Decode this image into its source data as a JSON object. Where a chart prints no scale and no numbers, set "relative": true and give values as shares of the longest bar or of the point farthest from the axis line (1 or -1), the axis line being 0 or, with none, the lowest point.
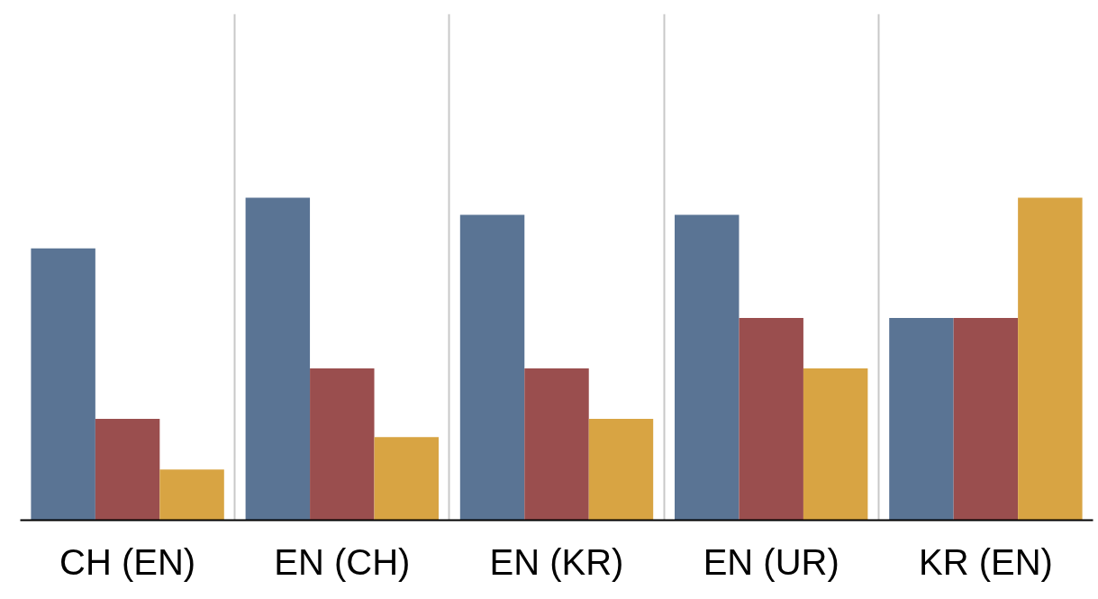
{
  "chart_data": {
    "type": "bar",
    "relative": true,
    "categories": [
      "CH (EN)",
      "EN (CH)",
      "EN (KR)",
      "EN (UR)",
      "KR (EN)"
    ],
    "grid": "x",
    "series": [
      {
        "color": "#5a7494",
        "values": [
          0.843,
          1,
          0.947,
          0.947,
          0.627
        ]
      },
      {
        "color": "#9a4e4e",
        "values": [
          0.314,
          0.471,
          0.471,
          0.627,
          0.627
        ]
      },
      {
        "color": "#d8a443",
        "values": [
          0.157,
          0.258,
          0.314,
          0.471,
          1
        ]
      }
    ]
  }
}
